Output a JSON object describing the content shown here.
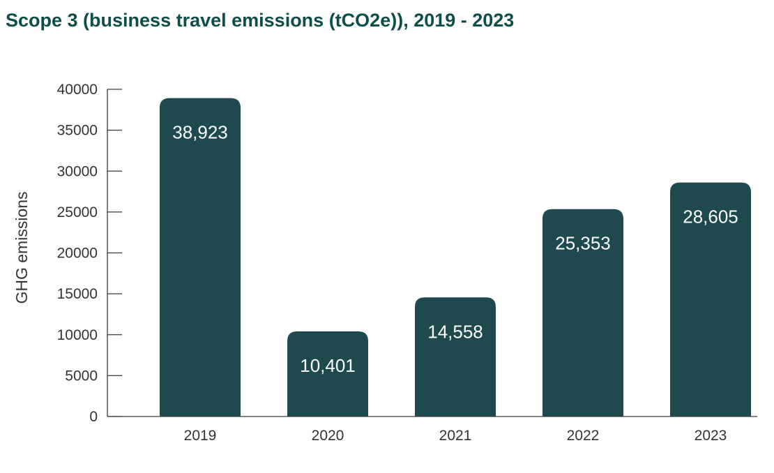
{
  "title": "Scope 3 (business travel emissions (tCO2e)), 2019 - 2023",
  "colors": {
    "title": "#0e4e4a",
    "bar": "#1e4a4f",
    "bar_label": "#ffffff",
    "axis_text": "#333333"
  },
  "chart_data": {
    "type": "bar",
    "title": "Scope 3 (business travel emissions (tCO2e)), 2019 - 2023",
    "xlabel": "",
    "ylabel": "GHG emissions",
    "categories": [
      "2019",
      "2020",
      "2021",
      "2022",
      "2023"
    ],
    "values": [
      38923,
      10401,
      14558,
      25353,
      28605
    ],
    "data_labels": [
      "38,923",
      "10,401",
      "14,558",
      "25,353",
      "28,605"
    ],
    "ylim": [
      0,
      40000
    ],
    "yticks": [
      0,
      5000,
      10000,
      15000,
      20000,
      25000,
      30000,
      35000,
      40000
    ],
    "ytick_labels": [
      "0",
      "5000",
      "10000",
      "15000",
      "20000",
      "25000",
      "30000",
      "35000",
      "40000"
    ],
    "grid": false,
    "legend": "none"
  }
}
